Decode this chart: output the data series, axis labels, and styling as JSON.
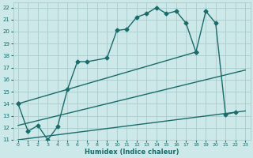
{
  "xlabel": "Humidex (Indice chaleur)",
  "bg_color": "#cce8e8",
  "grid_color": "#aacccc",
  "line_color": "#1a6b6b",
  "xlim": [
    -0.5,
    23.5
  ],
  "ylim": [
    11,
    22.4
  ],
  "yticks": [
    11,
    12,
    13,
    14,
    15,
    16,
    17,
    18,
    19,
    20,
    21,
    22
  ],
  "xticks": [
    0,
    1,
    2,
    3,
    4,
    5,
    6,
    7,
    8,
    9,
    10,
    11,
    12,
    13,
    14,
    15,
    16,
    17,
    18,
    19,
    20,
    21,
    22,
    23
  ],
  "curve1_x": [
    0,
    1,
    2,
    3,
    4,
    5,
    6,
    7,
    9,
    10,
    11,
    12,
    13,
    14,
    15,
    16,
    17,
    18
  ],
  "curve1_y": [
    14,
    11.7,
    12.2,
    11.0,
    12.1,
    15.2,
    17.5,
    17.5,
    17.8,
    20.1,
    20.2,
    21.2,
    21.5,
    22.0,
    21.5,
    21.7,
    20.7,
    18.3
  ],
  "curve2_x": [
    0,
    18,
    19,
    20,
    21,
    22
  ],
  "curve2_y": [
    14,
    18.3,
    21.7,
    20.7,
    13.1,
    13.3
  ],
  "line1_x": [
    0,
    23
  ],
  "line1_y": [
    11.0,
    13.4
  ],
  "line2_x": [
    0,
    23
  ],
  "line2_y": [
    12.2,
    16.8
  ],
  "marker": "D",
  "markersize": 2.5,
  "linewidth": 1.0
}
